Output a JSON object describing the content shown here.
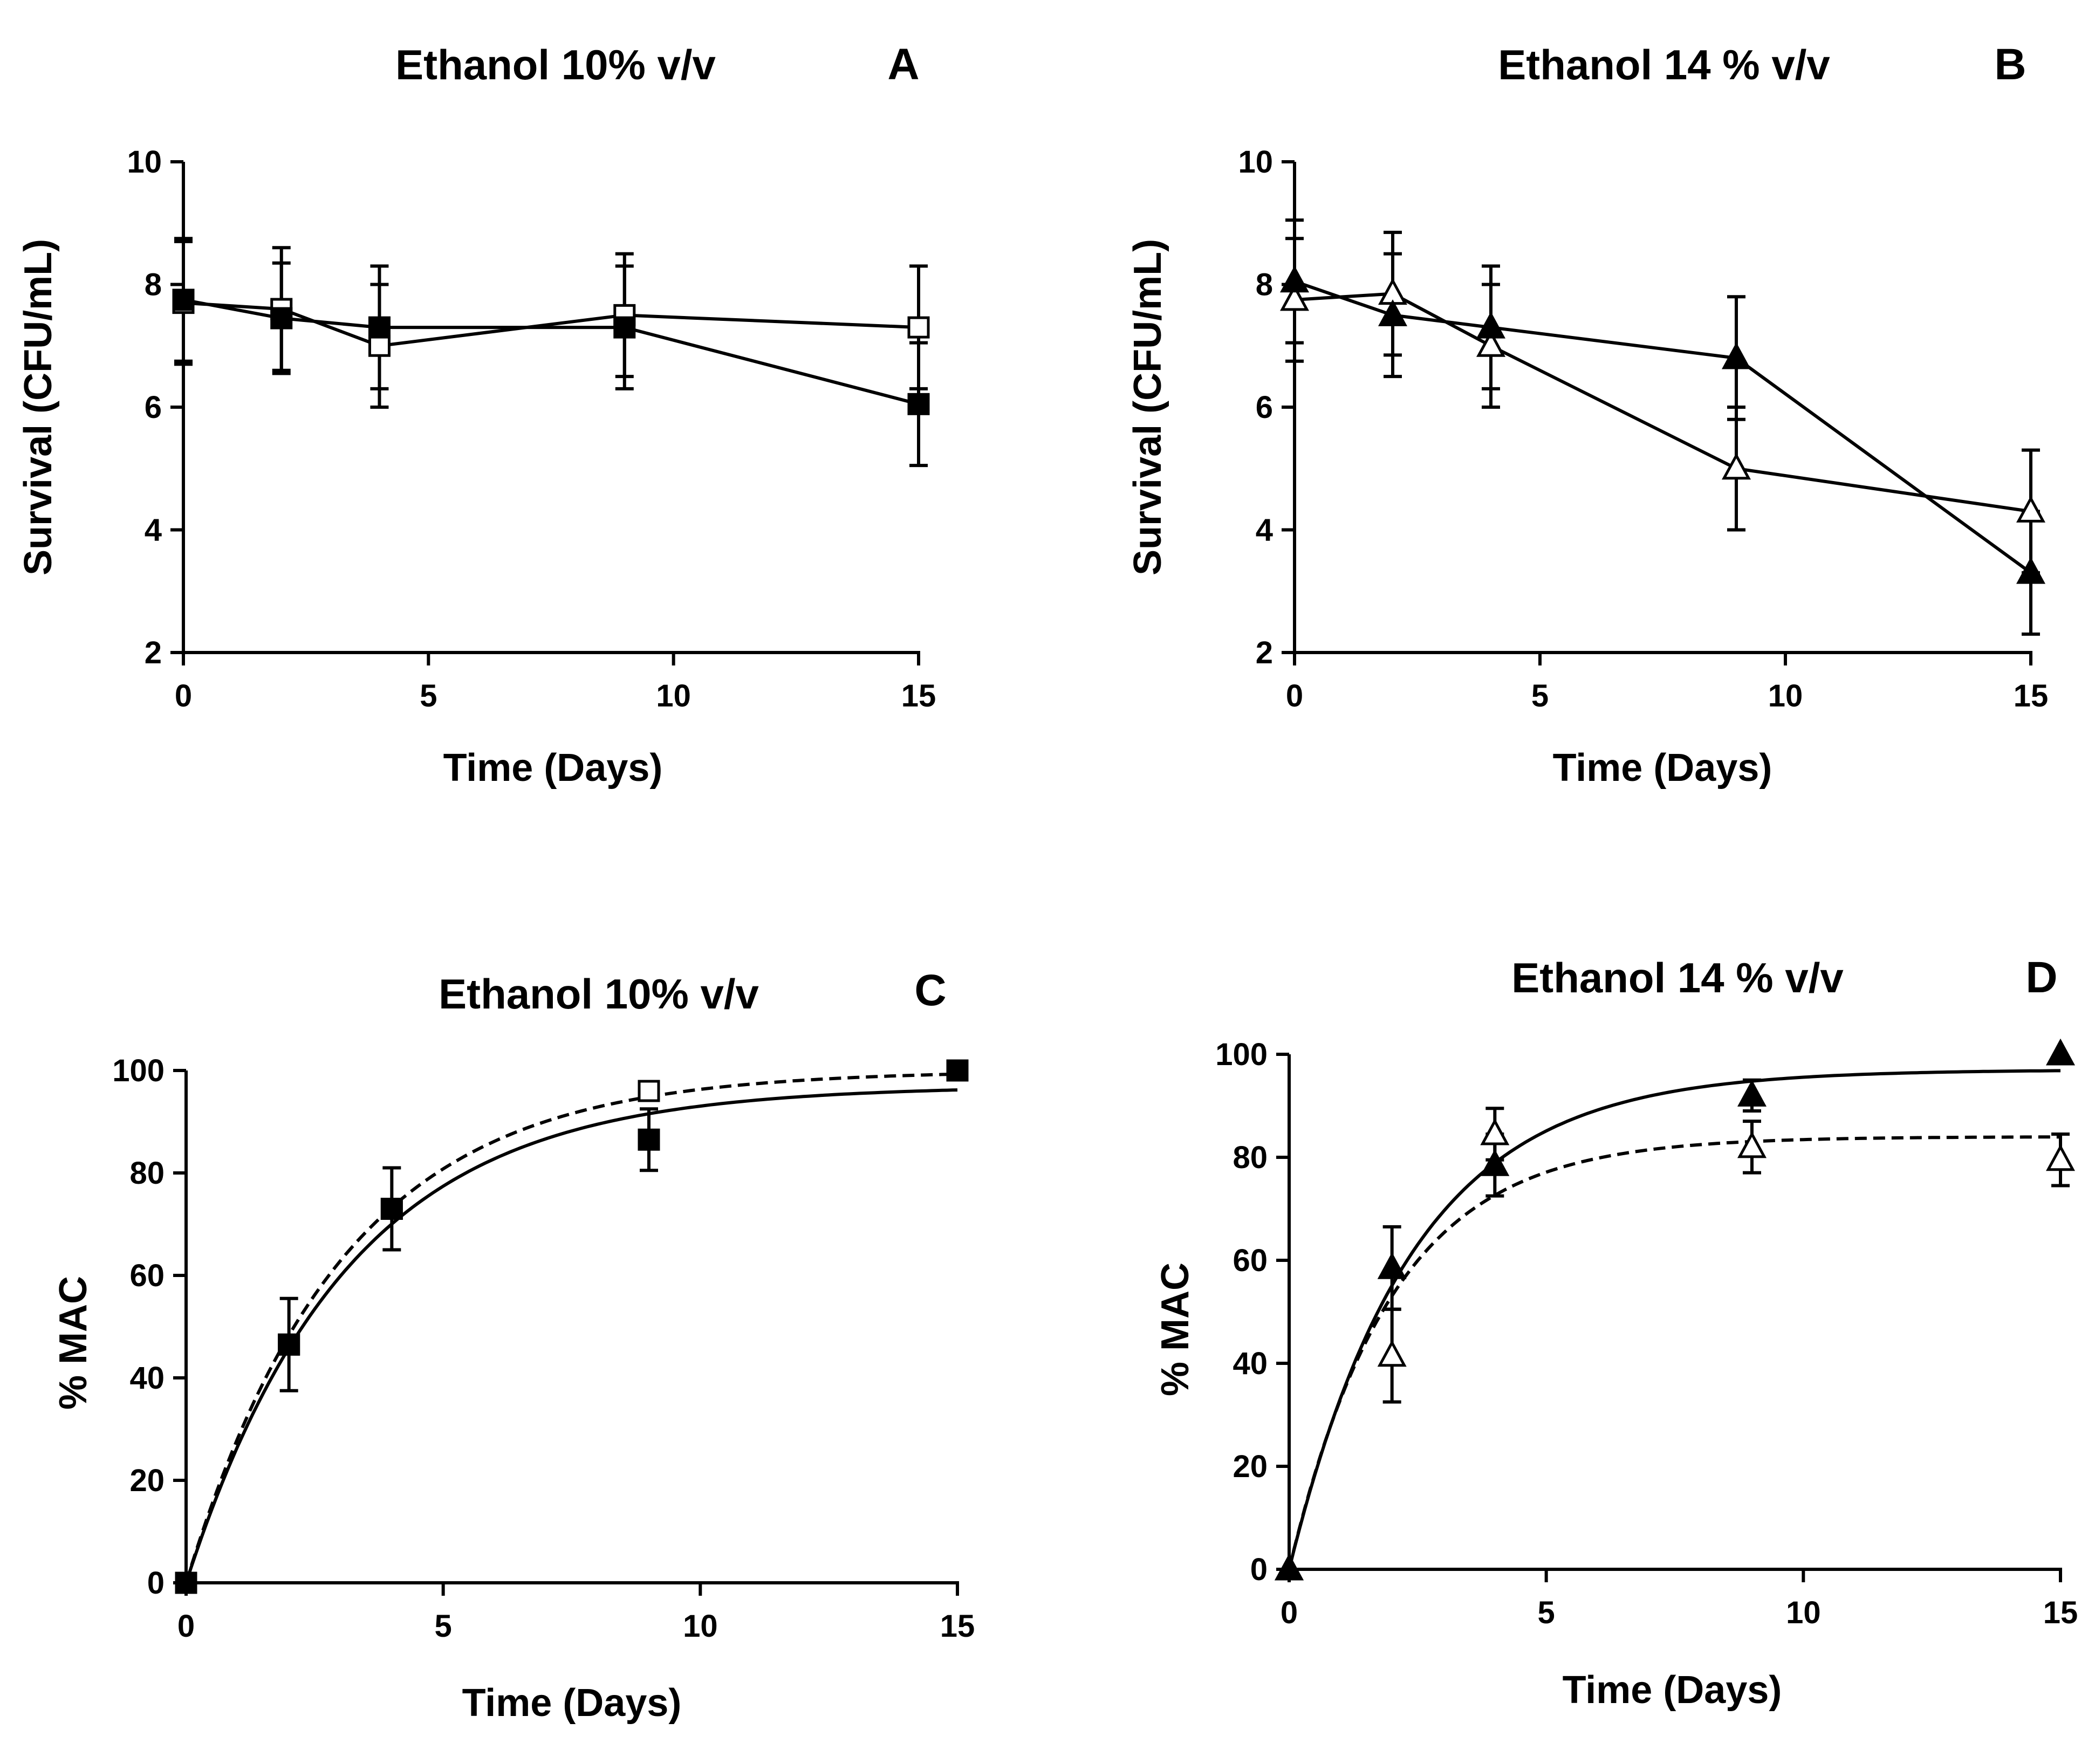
{
  "chart_data": [
    {
      "id": "A",
      "type": "line",
      "title": "Ethanol 10% v/v",
      "panel_letter": "A",
      "xlabel": "Time (Days)",
      "ylabel": "Survival (CFU/mL)",
      "xlim": [
        0,
        15
      ],
      "ylim": [
        2,
        10
      ],
      "xticks": [
        0,
        5,
        10,
        15
      ],
      "yticks": [
        2,
        4,
        6,
        8,
        10
      ],
      "series": [
        {
          "name": "open squares",
          "marker": "square-open",
          "line": "solid",
          "x": [
            0,
            2,
            4,
            9,
            15
          ],
          "y": [
            7.7,
            7.6,
            7.0,
            7.5,
            7.3
          ],
          "err": [
            1.0,
            1.0,
            1.0,
            1.0,
            1.0
          ]
        },
        {
          "name": "filled squares",
          "marker": "square-filled",
          "line": "solid",
          "x": [
            0,
            2,
            4,
            9,
            15
          ],
          "y": [
            7.75,
            7.45,
            7.3,
            7.3,
            6.05
          ],
          "err": [
            1.0,
            0.9,
            1.0,
            1.0,
            1.0
          ]
        }
      ]
    },
    {
      "id": "B",
      "type": "line",
      "title": "Ethanol 14 % v/v",
      "panel_letter": "B",
      "xlabel": "Time (Days)",
      "ylabel": "Survival (CFU/mL)",
      "xlim": [
        0,
        15
      ],
      "ylim": [
        2,
        10
      ],
      "xticks": [
        0,
        5,
        10,
        15
      ],
      "yticks": [
        2,
        4,
        6,
        8,
        10
      ],
      "series": [
        {
          "name": "open triangles",
          "marker": "triangle-open",
          "line": "solid",
          "x": [
            0,
            2,
            4,
            9,
            15
          ],
          "y": [
            7.75,
            7.85,
            7.0,
            5.0,
            4.3
          ],
          "err": [
            1.0,
            1.0,
            1.0,
            1.0,
            1.0
          ]
        },
        {
          "name": "filled triangles",
          "marker": "triangle-filled",
          "line": "solid",
          "x": [
            0,
            2,
            4,
            9,
            15
          ],
          "y": [
            8.05,
            7.5,
            7.3,
            6.8,
            3.3
          ],
          "err": [
            1.0,
            1.0,
            1.0,
            1.0,
            1.0
          ]
        }
      ]
    },
    {
      "id": "C",
      "type": "scatter",
      "title": "Ethanol 10% v/v",
      "panel_letter": "C",
      "xlabel": "Time (Days)",
      "ylabel": "% MAC",
      "xlim": [
        0,
        15
      ],
      "ylim": [
        0,
        100
      ],
      "xticks": [
        0,
        5,
        10,
        15
      ],
      "yticks": [
        0,
        20,
        40,
        60,
        80,
        100
      ],
      "series": [
        {
          "name": "open squares",
          "marker": "square-open",
          "x": [
            0,
            2,
            4,
            9,
            15
          ],
          "y": [
            0,
            46.5,
            73,
            96,
            100
          ],
          "err": [
            0,
            0,
            0,
            0,
            0
          ]
        },
        {
          "name": "filled squares",
          "marker": "square-filled",
          "x": [
            0,
            2,
            4,
            9,
            15
          ],
          "y": [
            0,
            46.5,
            73,
            86.5,
            100
          ],
          "err": [
            0,
            9,
            8,
            6,
            0
          ]
        }
      ],
      "fits": [
        {
          "name": "open squares fit",
          "style": "dashed",
          "plateau": 100,
          "k": 0.33
        },
        {
          "name": "filled squares fit",
          "style": "solid",
          "plateau": 97,
          "k": 0.32
        }
      ]
    },
    {
      "id": "D",
      "type": "scatter",
      "title": "Ethanol 14 % v/v",
      "panel_letter": "D",
      "xlabel": "Time (Days)",
      "ylabel": "% MAC",
      "xlim": [
        0,
        15
      ],
      "ylim": [
        0,
        100
      ],
      "xticks": [
        0,
        5,
        10,
        15
      ],
      "yticks": [
        0,
        20,
        40,
        60,
        80,
        100
      ],
      "series": [
        {
          "name": "open triangles",
          "marker": "triangle-open",
          "x": [
            0,
            2,
            4,
            9,
            15
          ],
          "y": [
            0,
            41.5,
            84.5,
            82,
            79.5
          ],
          "err": [
            0,
            9,
            5,
            5,
            5
          ]
        },
        {
          "name": "filled triangles",
          "marker": "triangle-filled",
          "x": [
            0,
            2,
            4,
            9,
            15
          ],
          "y": [
            0,
            58.5,
            78.5,
            92,
            100
          ],
          "err": [
            0,
            8,
            6,
            3,
            0
          ]
        }
      ],
      "fits": [
        {
          "name": "open triangles fit",
          "style": "dashed",
          "plateau": 84,
          "k": 0.5
        },
        {
          "name": "filled triangles fit",
          "style": "solid",
          "plateau": 97,
          "k": 0.42
        }
      ]
    }
  ]
}
